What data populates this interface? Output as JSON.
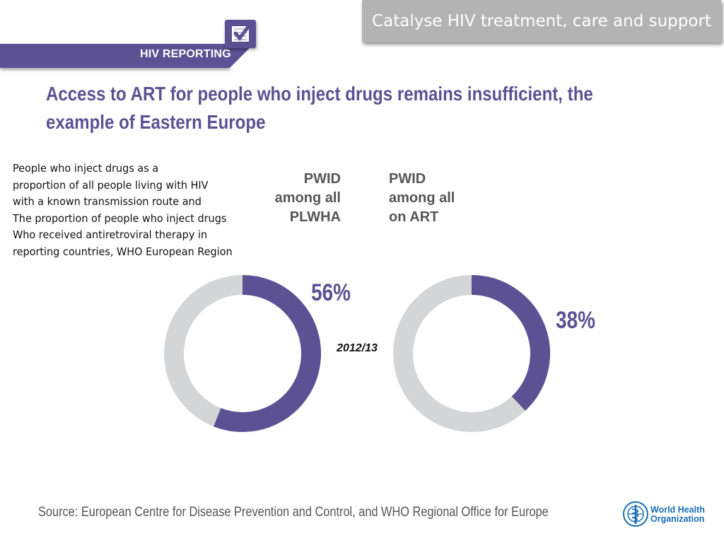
{
  "header": {
    "banner_text": "Catalyse HIV treatment, care and support",
    "section_label": "HIV REPORTING",
    "logo_icon": "checkbox-checked-icon"
  },
  "slide": {
    "title_line1": "Access to ART for people who inject drugs remains insufficient, the",
    "title_line2": "example of Eastern Europe"
  },
  "description": [
    "People who inject drugs as a",
    "proportion of all people living with HIV",
    "with a known transmission route and",
    "The proportion of people who inject drugs",
    "Who received antiretroviral therapy in",
    "reporting countries, WHO European Region"
  ],
  "chart_data": {
    "type": "pie",
    "style": "donut",
    "year_label": "2012/13",
    "series": [
      {
        "name": "PWID among all PLWHA",
        "label_lines": [
          "PWID",
          "among all",
          "PLWHA"
        ],
        "value": 56,
        "value_label": "56%"
      },
      {
        "name": "PWID among all on ART",
        "label_lines": [
          "PWID",
          "among all",
          "on ART"
        ],
        "value": 38,
        "value_label": "38%"
      }
    ],
    "colors": {
      "highlight": "#5b5193",
      "remainder": "#d4d5d7"
    }
  },
  "footer": {
    "source": "Source: European Centre for Disease Prevention and Control, and WHO Regional Office for Europe",
    "who_line1": "World Health",
    "who_line2": "Organization",
    "who_icon": "who-emblem-icon"
  }
}
